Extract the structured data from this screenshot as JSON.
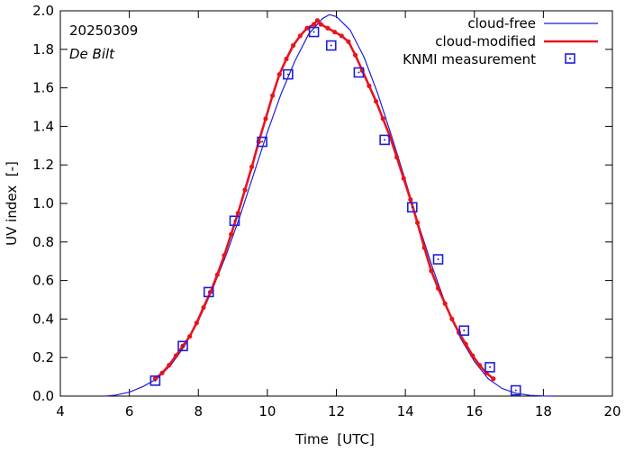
{
  "chart_data": {
    "type": "line",
    "annotations": {
      "date": "20250309",
      "station": "De Bilt"
    },
    "xlabel": "Time  [UTC]",
    "ylabel": "UV index  [-]",
    "xlim": [
      4,
      20
    ],
    "ylim": [
      0,
      2.0
    ],
    "xticks": [
      "4",
      "6",
      "8",
      "10",
      "12",
      "14",
      "16",
      "18",
      "20"
    ],
    "yticks": [
      "0.0",
      "0.2",
      "0.4",
      "0.6",
      "0.8",
      "1.0",
      "1.2",
      "1.4",
      "1.6",
      "1.8",
      "2.0"
    ],
    "grid": false,
    "legend_position": "top-right",
    "series": [
      {
        "name": "cloud-free",
        "color": "#1f1fd6",
        "style": "thin-line",
        "x": [
          5.3,
          5.6,
          6.0,
          6.4,
          6.8,
          7.2,
          7.6,
          8.0,
          8.4,
          8.8,
          9.2,
          9.6,
          10.0,
          10.4,
          10.8,
          11.2,
          11.6,
          11.8,
          12.0,
          12.4,
          12.8,
          13.2,
          13.6,
          14.0,
          14.4,
          14.8,
          15.2,
          15.6,
          16.0,
          16.4,
          16.8,
          17.2,
          17.6,
          18.0,
          18.3
        ],
        "y": [
          0.0,
          0.005,
          0.02,
          0.05,
          0.09,
          0.16,
          0.26,
          0.39,
          0.55,
          0.73,
          0.93,
          1.15,
          1.37,
          1.57,
          1.74,
          1.88,
          1.96,
          1.98,
          1.97,
          1.9,
          1.76,
          1.57,
          1.35,
          1.12,
          0.88,
          0.66,
          0.46,
          0.3,
          0.18,
          0.09,
          0.04,
          0.015,
          0.004,
          0.0005,
          0.0
        ]
      },
      {
        "name": "cloud-modified",
        "color": "#e8141e",
        "style": "thick-line-with-dots",
        "x": [
          6.75,
          6.95,
          7.15,
          7.35,
          7.55,
          7.75,
          7.95,
          8.15,
          8.35,
          8.55,
          8.75,
          8.95,
          9.15,
          9.35,
          9.55,
          9.75,
          9.95,
          10.15,
          10.35,
          10.55,
          10.75,
          10.95,
          11.15,
          11.35,
          11.45,
          11.55,
          11.75,
          11.95,
          12.15,
          12.35,
          12.55,
          12.75,
          12.95,
          13.15,
          13.35,
          13.55,
          13.75,
          13.95,
          14.15,
          14.35,
          14.55,
          14.75,
          14.95,
          15.15,
          15.35,
          15.55,
          15.75,
          15.95,
          16.15,
          16.35,
          16.55
        ],
        "y": [
          0.09,
          0.12,
          0.16,
          0.21,
          0.26,
          0.31,
          0.38,
          0.46,
          0.54,
          0.63,
          0.73,
          0.84,
          0.95,
          1.07,
          1.19,
          1.32,
          1.44,
          1.56,
          1.67,
          1.75,
          1.82,
          1.87,
          1.91,
          1.93,
          1.95,
          1.93,
          1.91,
          1.89,
          1.87,
          1.84,
          1.77,
          1.69,
          1.61,
          1.53,
          1.44,
          1.35,
          1.24,
          1.13,
          1.02,
          0.9,
          0.77,
          0.65,
          0.56,
          0.48,
          0.4,
          0.33,
          0.27,
          0.21,
          0.16,
          0.12,
          0.09
        ]
      },
      {
        "name": "KNMI measurement",
        "color": "#1f1fd6",
        "style": "square-markers",
        "x": [
          6.75,
          7.55,
          8.3,
          9.05,
          9.85,
          10.6,
          11.35,
          11.85,
          12.65,
          13.4,
          14.2,
          14.95,
          15.7,
          16.45,
          17.2
        ],
        "y": [
          0.08,
          0.26,
          0.54,
          0.91,
          1.32,
          1.67,
          1.89,
          1.82,
          1.68,
          1.33,
          0.98,
          0.71,
          0.34,
          0.15,
          0.03
        ]
      }
    ]
  }
}
